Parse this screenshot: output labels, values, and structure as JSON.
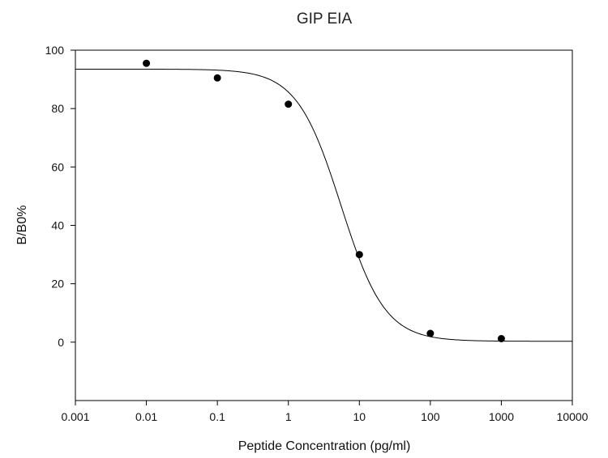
{
  "chart_data": {
    "type": "scatter",
    "title": "GIP EIA",
    "xlabel": "Peptide Concentration (pg/ml)",
    "ylabel": "B/B0%",
    "x_scale": "log",
    "xlim": [
      0.001,
      10000
    ],
    "ylim": [
      -20,
      100
    ],
    "x_ticks": [
      0.001,
      0.01,
      0.1,
      1,
      10,
      100,
      1000,
      10000
    ],
    "x_tick_labels": [
      "0.001",
      "0.01",
      "0.1",
      "1",
      "10",
      "100",
      "1000",
      "10000"
    ],
    "y_ticks": [
      0,
      20,
      40,
      60,
      80,
      100
    ],
    "y_tick_labels": [
      "0",
      "20",
      "40",
      "60",
      "80",
      "100"
    ],
    "grid": false,
    "legend": "none",
    "series": [
      {
        "x": [
          0.01,
          0.1,
          1,
          10,
          100,
          1000
        ],
        "y": [
          95.5,
          90.5,
          81.5,
          30,
          3,
          1.2
        ]
      }
    ],
    "fit_curve": {
      "model": "four-parameter logistic",
      "top": 93.5,
      "bottom": 0.3,
      "ec50": 5.5,
      "hill": 1.4
    }
  }
}
